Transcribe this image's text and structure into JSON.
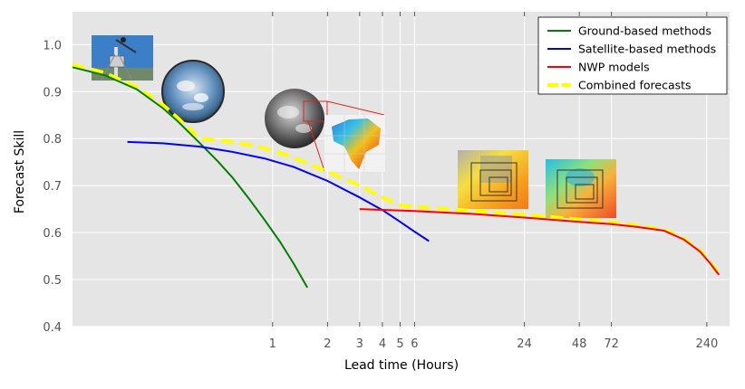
{
  "chart_data": {
    "type": "line",
    "xlabel": "Lead time (Hours)",
    "ylabel": "Forecast Skill",
    "x_scale": "log",
    "xlim": [
      0.08,
      320
    ],
    "ylim": [
      0.4,
      1.07
    ],
    "grid": true,
    "legend_position": "top-right",
    "x_ticks": [
      {
        "value": 1,
        "label": "1"
      },
      {
        "value": 2,
        "label": "2"
      },
      {
        "value": 3,
        "label": "3"
      },
      {
        "value": 4,
        "label": "4"
      },
      {
        "value": 5,
        "label": "5"
      },
      {
        "value": 6,
        "label": "6"
      },
      {
        "value": 24,
        "label": "24"
      },
      {
        "value": 48,
        "label": "48"
      },
      {
        "value": 72,
        "label": "72"
      },
      {
        "value": 240,
        "label": "240"
      }
    ],
    "y_ticks": [
      {
        "value": 0.4,
        "label": "0.4"
      },
      {
        "value": 0.5,
        "label": "0.5"
      },
      {
        "value": 0.6,
        "label": "0.6"
      },
      {
        "value": 0.7,
        "label": "0.7"
      },
      {
        "value": 0.8,
        "label": "0.8"
      },
      {
        "value": 0.9,
        "label": "0.9"
      },
      {
        "value": 1.0,
        "label": "1.0"
      }
    ],
    "series": [
      {
        "name": "Ground-based methods",
        "color": "#008000",
        "dash": false,
        "x": [
          0.08,
          0.12,
          0.18,
          0.25,
          0.3,
          0.4,
          0.5,
          0.6,
          0.75,
          0.9,
          1.1,
          1.3,
          1.55
        ],
        "y": [
          0.952,
          0.935,
          0.905,
          0.865,
          0.838,
          0.79,
          0.752,
          0.718,
          0.67,
          0.628,
          0.58,
          0.535,
          0.483
        ]
      },
      {
        "name": "Satellite-based methods",
        "color": "#0000ff",
        "dash": false,
        "x": [
          0.16,
          0.25,
          0.4,
          0.6,
          0.9,
          1.3,
          2.0,
          3.0,
          4.0,
          5.0,
          6.0,
          7.2
        ],
        "y": [
          0.793,
          0.79,
          0.783,
          0.772,
          0.758,
          0.74,
          0.71,
          0.675,
          0.648,
          0.623,
          0.602,
          0.582
        ]
      },
      {
        "name": "NWP models",
        "color": "#ff0000",
        "dash": false,
        "x": [
          3.0,
          6.0,
          12,
          24,
          48,
          72,
          100,
          140,
          180,
          220,
          250,
          280
        ],
        "y": [
          0.65,
          0.646,
          0.64,
          0.632,
          0.623,
          0.618,
          0.612,
          0.604,
          0.585,
          0.56,
          0.535,
          0.51
        ]
      },
      {
        "name": "Combined forecasts",
        "color": "#ffff00",
        "dash": true,
        "x": [
          0.08,
          0.12,
          0.18,
          0.25,
          0.3,
          0.4,
          0.55,
          0.8,
          1.2,
          2.0,
          3.0,
          4.0,
          5.0,
          6.0,
          12,
          24,
          48,
          72,
          100,
          140,
          180,
          220,
          250,
          280
        ],
        "y": [
          0.958,
          0.94,
          0.91,
          0.872,
          0.845,
          0.8,
          0.795,
          0.785,
          0.765,
          0.73,
          0.7,
          0.675,
          0.658,
          0.655,
          0.647,
          0.638,
          0.628,
          0.622,
          0.615,
          0.606,
          0.587,
          0.562,
          0.537,
          0.512
        ]
      }
    ],
    "legend": [
      {
        "label": "Ground-based methods",
        "color": "#008000",
        "dash": false
      },
      {
        "label": "Satellite-based methods",
        "color": "#0000ff",
        "dash": false
      },
      {
        "label": "NWP models",
        "color": "#ff0000",
        "dash": false
      },
      {
        "label": "Combined forecasts",
        "color": "#ffff00",
        "dash": true
      }
    ]
  },
  "images": [
    {
      "name": "camera-photo-image",
      "icon": "sky-camera"
    },
    {
      "name": "sky-dome-image",
      "icon": "fisheye-sky"
    },
    {
      "name": "satellite-disk-image",
      "icon": "earth-disk"
    },
    {
      "name": "satellite-map-image",
      "icon": "india-map"
    },
    {
      "name": "nwp-map-image-1",
      "icon": "nested-grid-map"
    },
    {
      "name": "nwp-map-image-2",
      "icon": "nested-grid-map"
    }
  ]
}
